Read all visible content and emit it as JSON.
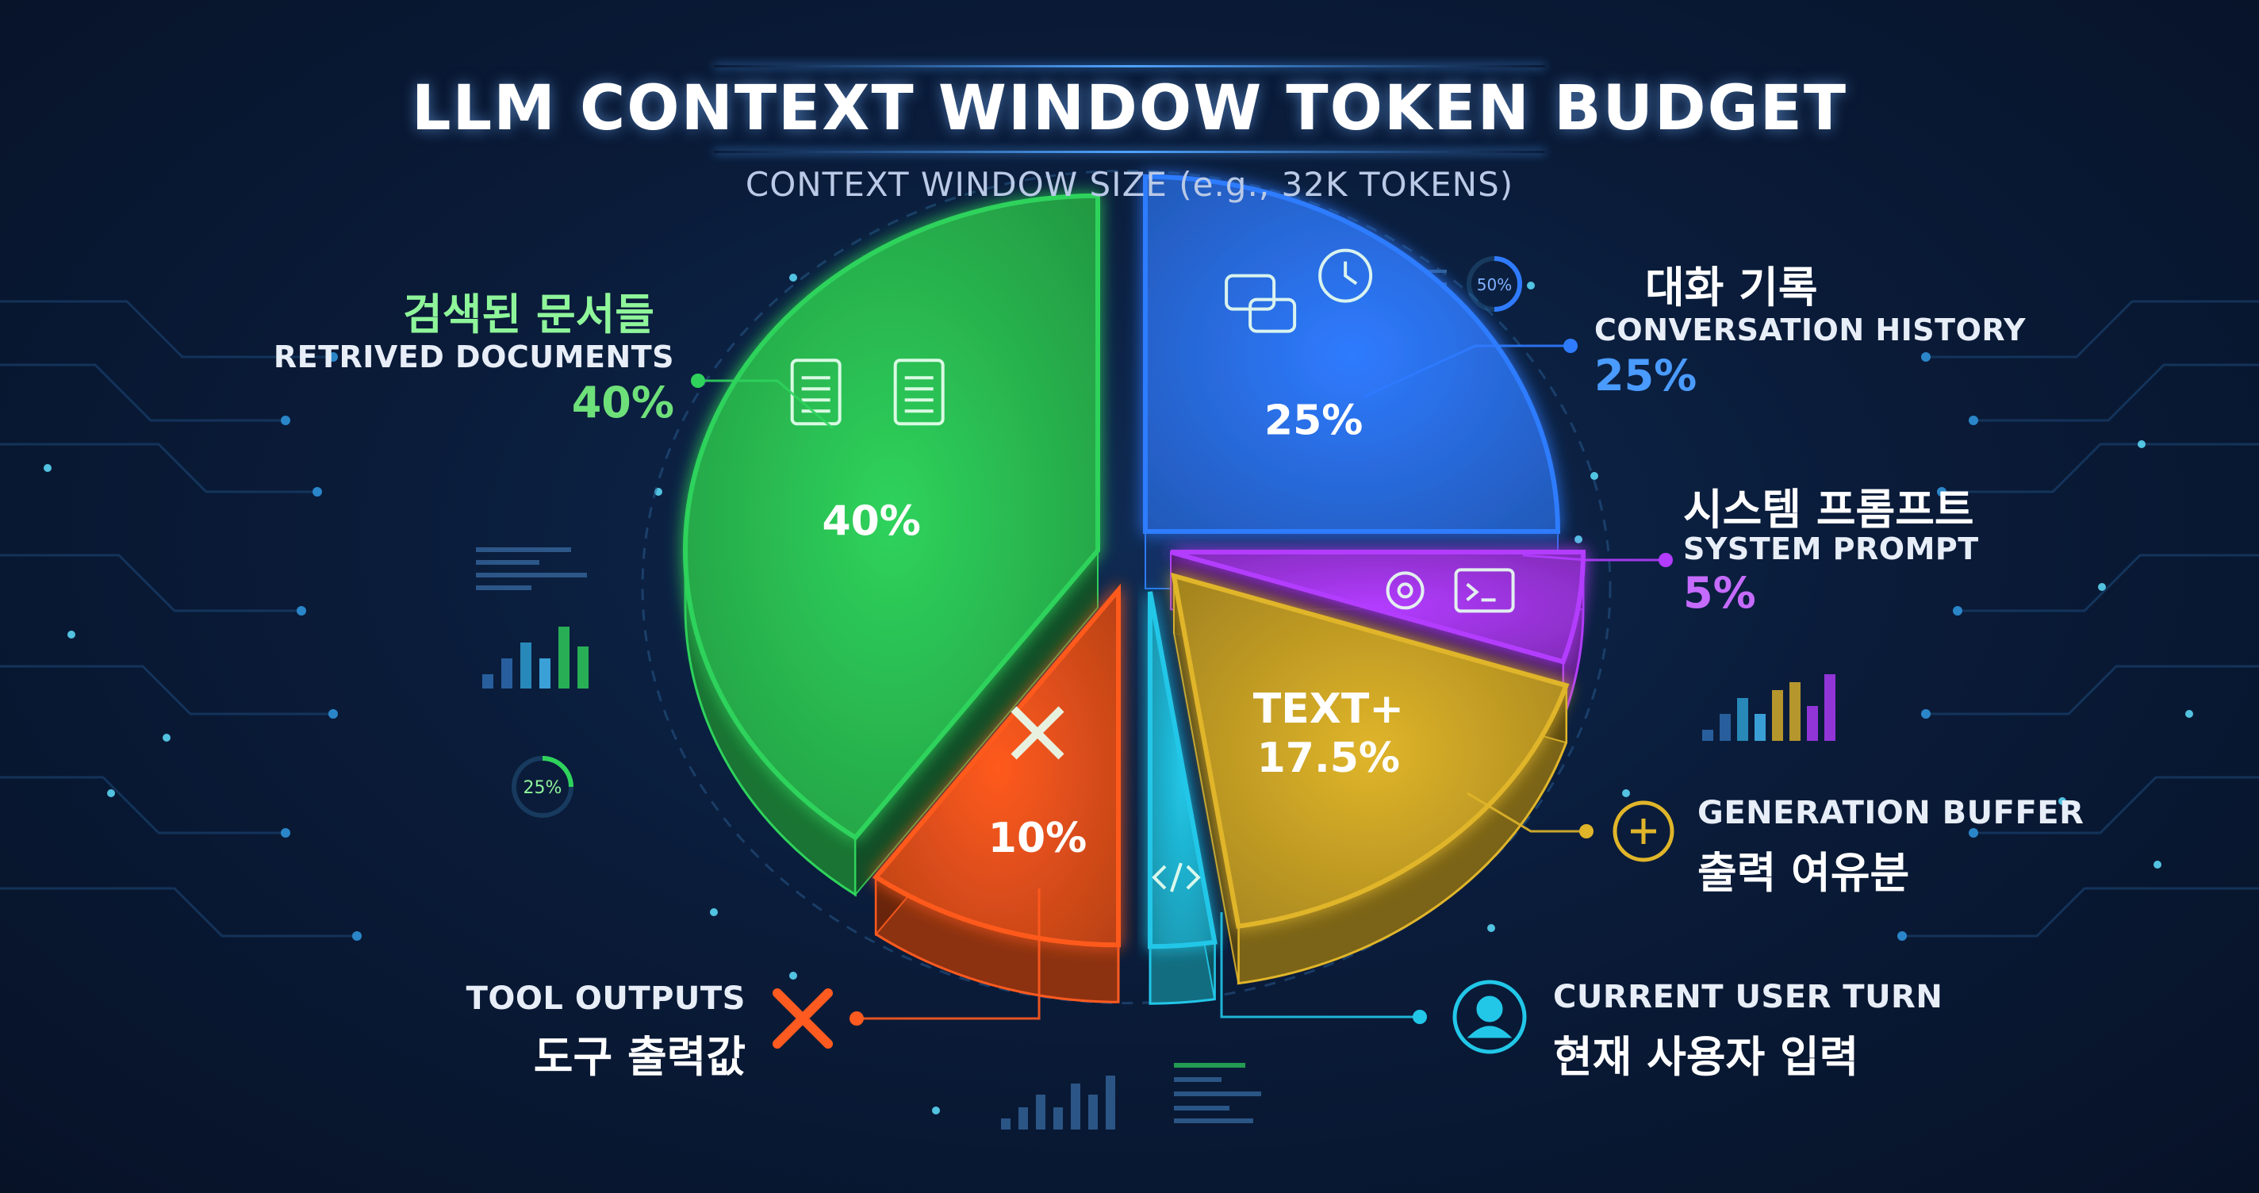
{
  "title": "LLM CONTEXT WINDOW TOKEN BUDGET",
  "subtitle": "CONTEXT WINDOW SIZE (e.g., 32K TOKENS)",
  "colors": {
    "retrieved": "#2fd35c",
    "conversation": "#2f7bff",
    "system": "#b33cff",
    "generation": "#e0b52a",
    "user_turn": "#22c7e8",
    "tool": "#ff5a1f",
    "bg": "#0a1c3a"
  },
  "labels": {
    "retrieved": {
      "ko": "검색된 문서들",
      "en": "RETRIVED DOCUMENTS",
      "pct": "40%"
    },
    "conversation": {
      "ko": "대화 기록",
      "en": "CONVERSATION HISTORY",
      "pct": "25%"
    },
    "system": {
      "ko": "시스템 프롬프트",
      "en": "SYSTEM PROMPT",
      "pct": "5%"
    },
    "generation": {
      "en": "GENERATION BUFFER",
      "ko": "출력 여유분"
    },
    "user_turn": {
      "en": "CURRENT USER TURN",
      "ko": "현재 사용자 입력"
    },
    "tool": {
      "en": "TOOL OUTPUTS",
      "ko": "도구 출력값"
    }
  },
  "deco": {
    "gauge_left": "25%",
    "gauge_right": "50%"
  },
  "chart_data": {
    "type": "pie",
    "title": "LLM CONTEXT WINDOW TOKEN BUDGET",
    "subtitle": "CONTEXT WINDOW SIZE (e.g., 32K TOKENS)",
    "slices": [
      {
        "id": "conversation",
        "value": 25,
        "label": "25%",
        "icons": [
          "chat-icon",
          "clock-icon"
        ]
      },
      {
        "id": "system",
        "value": 5,
        "label": "",
        "icons": [
          "gear-icon",
          "terminal-icon"
        ]
      },
      {
        "id": "generation",
        "value": 17.5,
        "label": "TEXT+\n17.5%",
        "icons": []
      },
      {
        "id": "user_turn",
        "value": 2.5,
        "label": "",
        "icons": [
          "code-icon"
        ]
      },
      {
        "id": "tool",
        "value": 10,
        "label": "10%",
        "icons": [
          "wrench-screwdriver-icon"
        ]
      },
      {
        "id": "retrieved",
        "value": 40,
        "label": "40%",
        "icons": [
          "document-icon",
          "list-document-icon"
        ]
      }
    ]
  }
}
